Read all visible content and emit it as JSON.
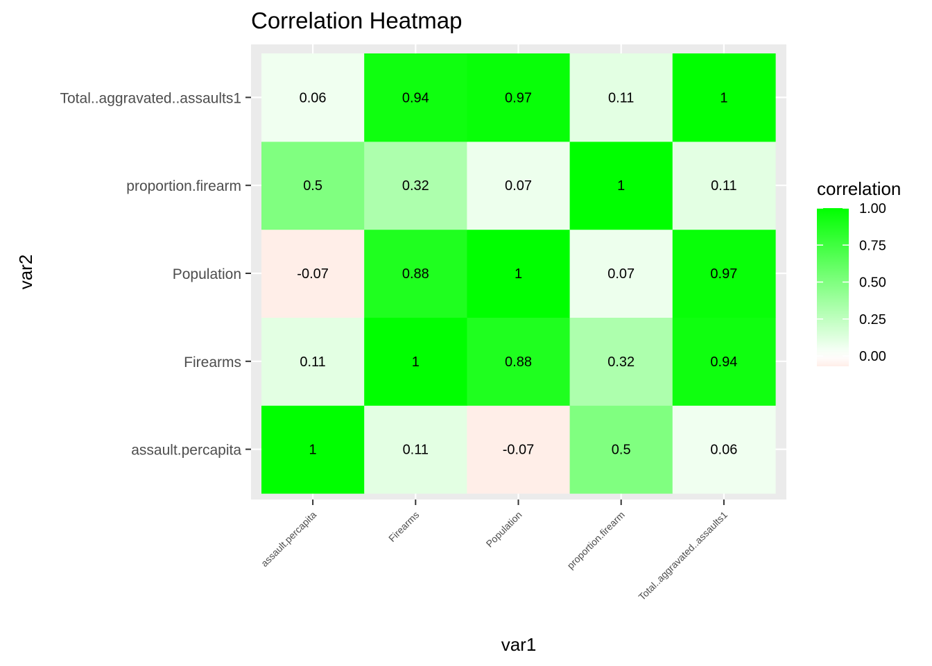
{
  "chart_data": {
    "type": "heatmap",
    "title": "Correlation Heatmap",
    "xlabel": "var1",
    "ylabel": "var2",
    "x_categories": [
      "assault.percapita",
      "Firearms",
      "Population",
      "proportion.firearm",
      "Total..aggravated..assaults1"
    ],
    "y_categories": [
      "assault.percapita",
      "Firearms",
      "Population",
      "proportion.firearm",
      "Total..aggravated..assaults1"
    ],
    "values": [
      [
        1,
        0.11,
        -0.07,
        0.5,
        0.06
      ],
      [
        0.11,
        1,
        0.88,
        0.32,
        0.94
      ],
      [
        -0.07,
        0.88,
        1,
        0.07,
        0.97
      ],
      [
        0.5,
        0.32,
        0.07,
        1,
        0.11
      ],
      [
        0.06,
        0.94,
        0.97,
        0.11,
        1
      ]
    ],
    "labels": [
      [
        "1",
        "0.11",
        "-0.07",
        "0.5",
        "0.06"
      ],
      [
        "0.11",
        "1",
        "0.88",
        "0.32",
        "0.94"
      ],
      [
        "-0.07",
        "0.88",
        "1",
        "0.07",
        "0.97"
      ],
      [
        "0.5",
        "0.32",
        "0.07",
        "1",
        "0.11"
      ],
      [
        "0.06",
        "0.94",
        "0.97",
        "0.11",
        "1"
      ]
    ],
    "legend": {
      "title": "correlation",
      "ticks": [
        1.0,
        0.75,
        0.5,
        0.25,
        0.0
      ],
      "tick_labels": [
        "1.00",
        "0.75",
        "0.50",
        "0.25",
        "0.00"
      ],
      "range": [
        -0.07,
        1.0
      ]
    },
    "colors": {
      "high": "#00ff00",
      "mid": "#ffffff",
      "low": "#ffeee8",
      "panel_bg": "#ebebeb",
      "grid": "#ffffff"
    }
  }
}
